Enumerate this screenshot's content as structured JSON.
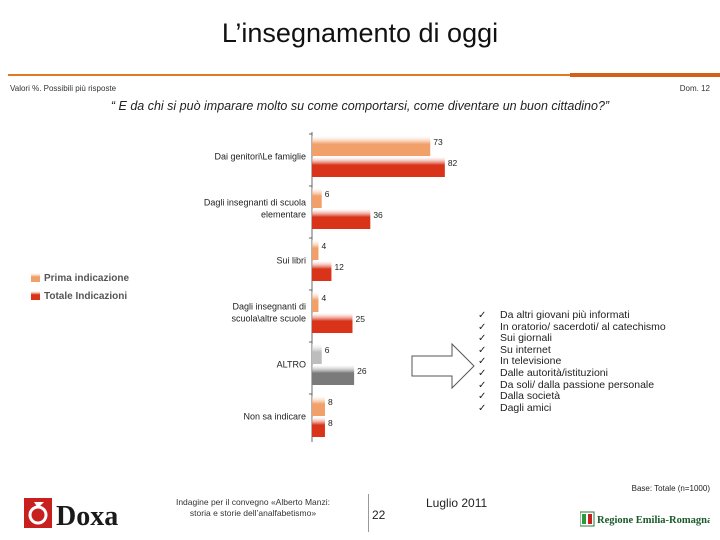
{
  "slide": {
    "title": "L’insegnamento di oggi",
    "meta_left": "Valori %. Possibili più risposte",
    "meta_right": "Dom. 12",
    "question": "“ E da chi si può imparare molto su come comportarsi, come diventare un buon cittadino?”",
    "base": "Base: Totale (n=1000)",
    "footer_line1": "Indagine per il convegno «Alberto Manzi:",
    "footer_line2": "storia e storie dell’analfabetismo»",
    "page_number": "22",
    "date": "Luglio 2011",
    "logo_doxa": "Doxa",
    "logo_region": "Regione Emilia-Romagna"
  },
  "reasons_list": [
    "Da altri giovani più informati",
    "In oratorio/ sacerdoti/ al catechismo",
    "Sui giornali",
    "Su internet",
    "In televisione",
    "Dalle autorità/istituzioni",
    "Da soli/ dalla passione personale",
    "Dalla società",
    "Dagli amici"
  ],
  "colors": {
    "accent": "#e07a20",
    "first_mention": "#f2a06a",
    "total_mentions": "#d9341a",
    "other_first": "#bdbdbd",
    "other_total": "#7a7a7a"
  },
  "chart_data": {
    "type": "bar",
    "orientation": "horizontal",
    "categories": [
      [
        "Dai genitori\\Le famiglie"
      ],
      [
        "Dagli insegnanti di scuola",
        "elementare"
      ],
      [
        "Sui libri"
      ],
      [
        "Dagli insegnanti di",
        "scuola\\altre scuole"
      ],
      [
        "ALTRO"
      ],
      [
        "Non sa indicare"
      ]
    ],
    "series": [
      {
        "name": "Prima indicazione",
        "values": [
          73,
          6,
          4,
          4,
          6,
          8
        ]
      },
      {
        "name": "Totale Indicazioni",
        "values": [
          82,
          36,
          12,
          25,
          26,
          8
        ]
      }
    ],
    "xlim": [
      0,
      100
    ],
    "legend_position": "left",
    "grid": false
  }
}
